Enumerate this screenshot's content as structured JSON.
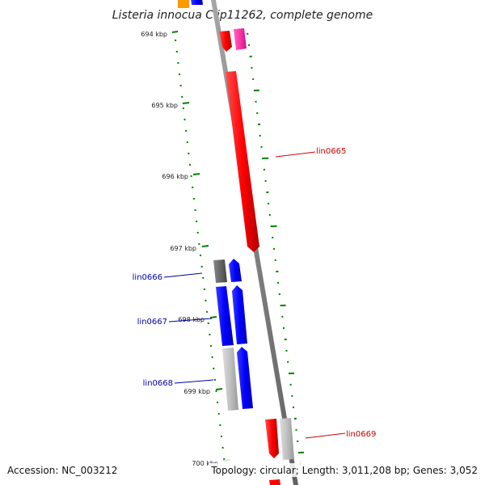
{
  "title": "Listeria innocua Clip11262, complete genome",
  "footer": {
    "accession": "Accession: NC_003212",
    "topology": "Topology: circular; Length: 3,011,208 bp; Genes: 3,052"
  },
  "ticks": [
    "694 kbp",
    "695 kbp",
    "696 kbp",
    "697 kbp",
    "698 kbp",
    "699 kbp",
    "700 kbp"
  ],
  "gene_labels": [
    "lin0665",
    "lin0666",
    "lin0667",
    "lin0668",
    "lin0669"
  ],
  "colors": {
    "forward_gene": "#ff0000",
    "reverse_gene": "#0000ff",
    "pink_gene": "#ff33aa",
    "orange_gene": "#ff9900",
    "gray_gene": "#c0c0c0",
    "dark_gray_gene": "#666666",
    "backbone": "#808080",
    "gc_dots": "#008000",
    "label_forward": "#cc0000",
    "label_reverse": "#0000aa"
  }
}
